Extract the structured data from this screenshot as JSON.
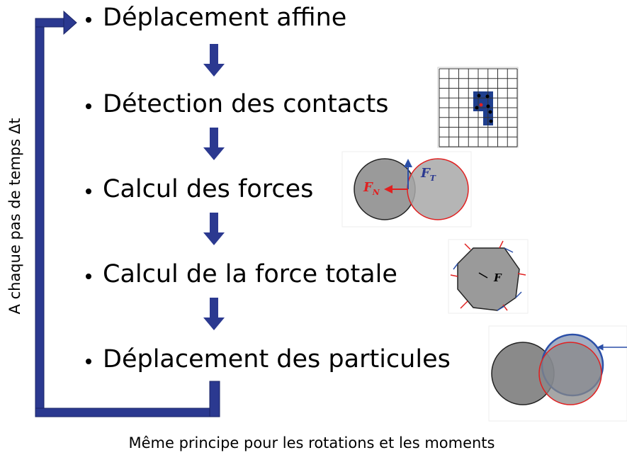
{
  "steps": [
    "Déplacement affine",
    "Détection des contacts",
    "Calcul des forces",
    "Calcul de la force totale",
    "Déplacement des particules"
  ],
  "side_label": "A chaque pas de temps Δt",
  "footer": "Même principe pour les rotations et les moments",
  "figures": {
    "contact_forces": {
      "normal_label": "F",
      "normal_sub": "N",
      "tangential_label": "F",
      "tangential_sub": "T"
    },
    "total_force": {
      "label": "F"
    }
  }
}
